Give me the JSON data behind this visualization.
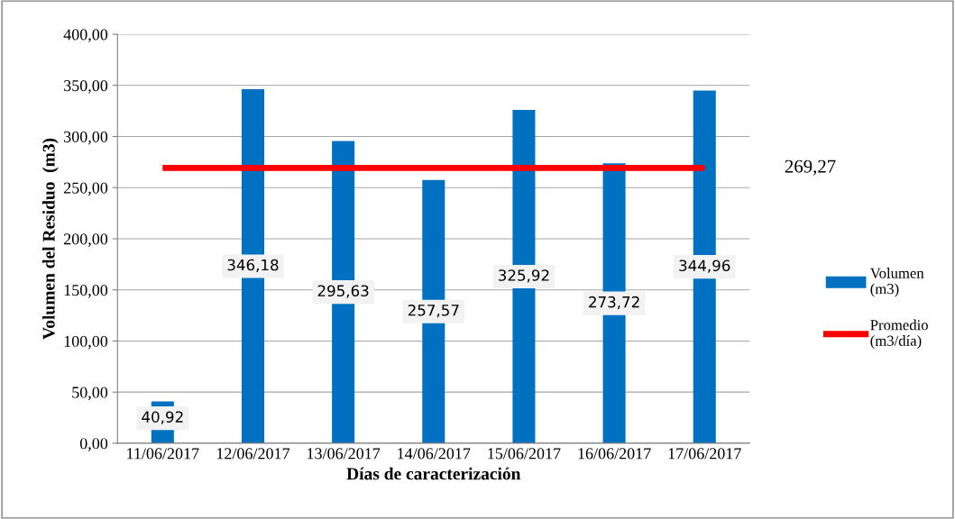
{
  "chart_data": {
    "type": "bar",
    "xlabel": "Días de caracterización",
    "ylabel": "Volumen del Residuo  (m3)",
    "categories": [
      "11/06/2017",
      "12/06/2017",
      "13/06/2017",
      "14/06/2017",
      "15/06/2017",
      "16/06/2017",
      "17/06/2017"
    ],
    "series": [
      {
        "name": "Volumen\n(m3)",
        "color": "#0070c0",
        "values": [
          40.92,
          346.18,
          295.63,
          257.57,
          325.92,
          273.72,
          344.96
        ],
        "value_labels": [
          "40,92",
          "346,18",
          "295,63",
          "257,57",
          "325,92",
          "273,72",
          "344,96"
        ]
      },
      {
        "name": "Promedio\n(m3/día)",
        "type": "line",
        "color": "#ff0000",
        "values": [
          269.27,
          269.27,
          269.27,
          269.27,
          269.27,
          269.27,
          269.27
        ]
      }
    ],
    "annotations": [
      "269,27"
    ],
    "ylim": [
      0,
      400
    ],
    "yticks": [
      {
        "value": 0,
        "label": "0,00"
      },
      {
        "value": 50,
        "label": "50,00"
      },
      {
        "value": 100,
        "label": "100,00"
      },
      {
        "value": 150,
        "label": "150,00"
      },
      {
        "value": 200,
        "label": "200,00"
      },
      {
        "value": 250,
        "label": "250,00"
      },
      {
        "value": 300,
        "label": "300,00"
      },
      {
        "value": 350,
        "label": "350,00"
      },
      {
        "value": 400,
        "label": "400,00"
      }
    ],
    "grid": "y",
    "legend": "right",
    "marker": "none",
    "line_style": "solid"
  }
}
